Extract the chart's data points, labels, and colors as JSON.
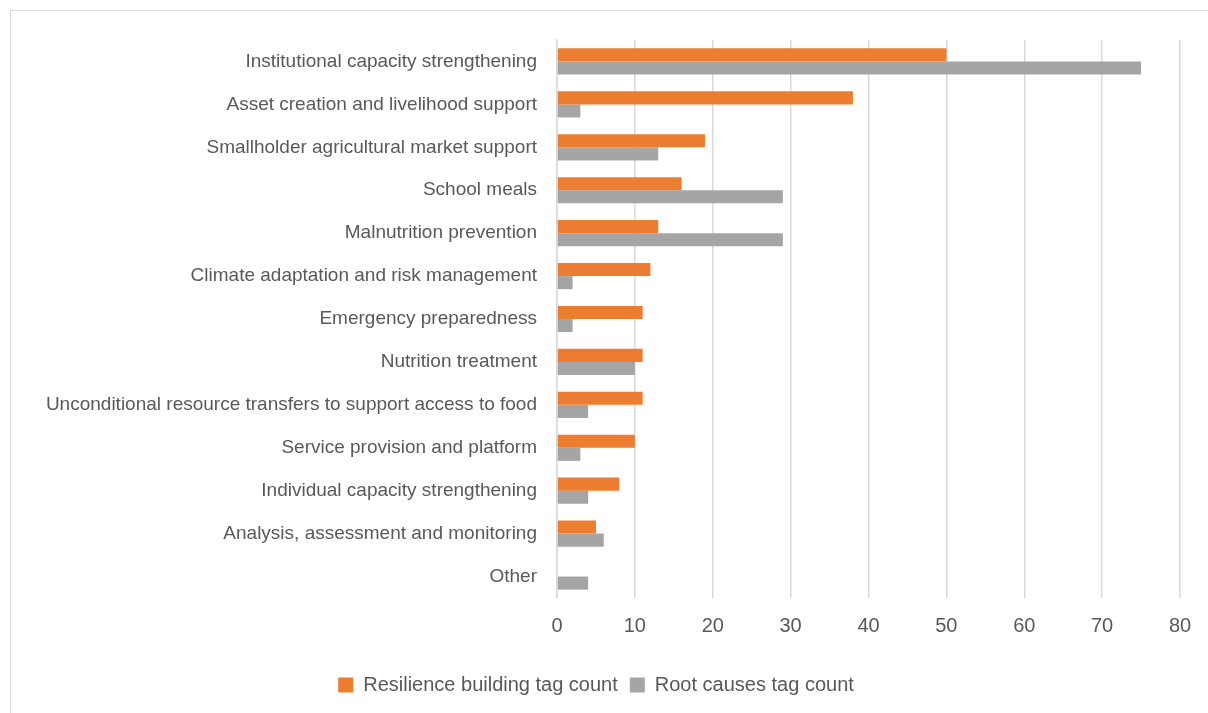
{
  "chart_data": {
    "type": "bar",
    "orientation": "horizontal",
    "categories": [
      "Institutional capacity strengthening",
      "Asset creation and livelihood support",
      "Smallholder agricultural market support",
      "School meals",
      "Malnutrition prevention",
      "Climate adaptation and risk management",
      "Emergency preparedness",
      "Nutrition treatment",
      "Unconditional resource transfers to support access to food",
      "Service provision and platform",
      "Individual capacity strengthening",
      "Analysis, assessment and monitoring",
      "Other"
    ],
    "series": [
      {
        "name": "Resilience building tag count",
        "color": "#ed7d31",
        "values": [
          50,
          38,
          19,
          16,
          13,
          12,
          11,
          11,
          11,
          10,
          8,
          5,
          null
        ]
      },
      {
        "name": "Root causes tag count",
        "color": "#a5a5a5",
        "values": [
          75,
          3,
          13,
          29,
          29,
          2,
          2,
          10,
          4,
          3,
          4,
          6,
          4
        ]
      }
    ],
    "xlim": [
      0,
      80
    ],
    "xticks": [
      0,
      10,
      20,
      30,
      40,
      50,
      60,
      70,
      80
    ],
    "grid": "x",
    "legend": "bottom"
  }
}
